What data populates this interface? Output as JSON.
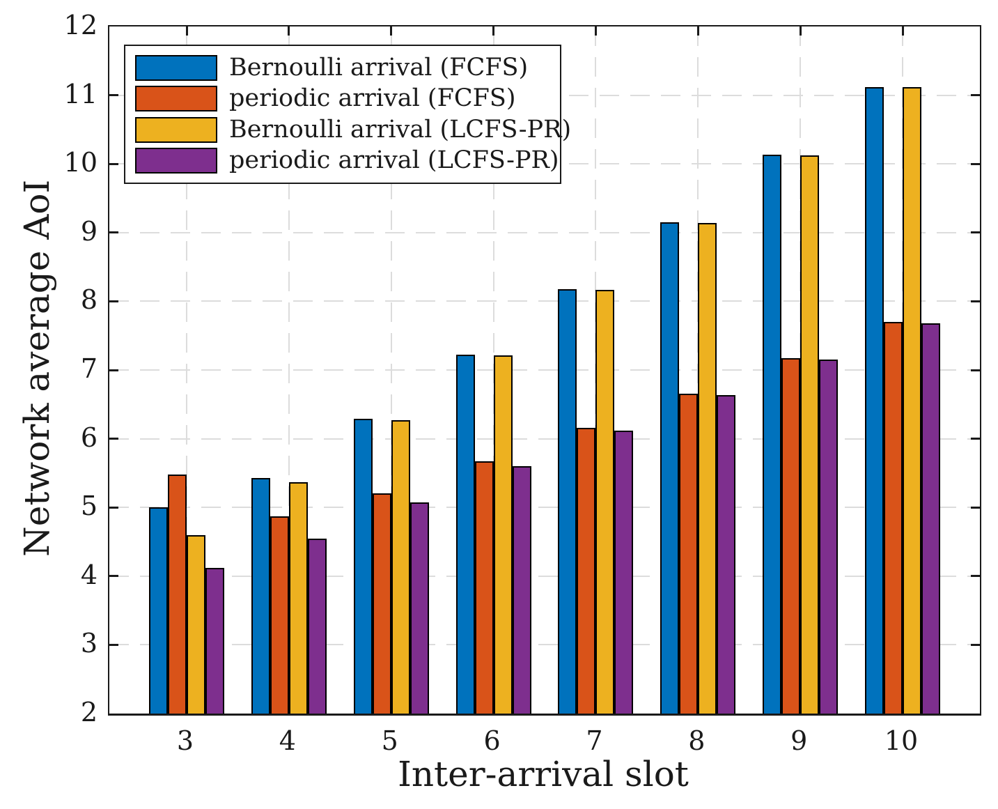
{
  "figure": {
    "background": "#ffffff"
  },
  "chart_data": {
    "type": "bar",
    "title": "",
    "xlabel": "Inter-arrival slot",
    "ylabel": "Network average AoI",
    "categories": [
      "3",
      "4",
      "5",
      "6",
      "7",
      "8",
      "9",
      "10"
    ],
    "yticks": [
      "2",
      "3",
      "4",
      "5",
      "6",
      "7",
      "8",
      "9",
      "10",
      "11",
      "12"
    ],
    "ylim": [
      2,
      12
    ],
    "grid": "dashed-both-axes",
    "legend_position": "top-left",
    "series": [
      {
        "name": "Bernoulli arrival (FCFS)",
        "color": "#0072BD",
        "values": [
          5.0,
          5.43,
          6.29,
          7.22,
          8.18,
          9.15,
          10.13,
          11.12
        ]
      },
      {
        "name": "periodic arrival (FCFS)",
        "color": "#D95319",
        "values": [
          5.48,
          4.87,
          5.2,
          5.67,
          6.16,
          6.66,
          7.17,
          7.7
        ]
      },
      {
        "name": "Bernoulli arrival (LCFS-PR)",
        "color": "#EDB120",
        "values": [
          4.6,
          5.37,
          6.27,
          7.21,
          8.17,
          9.14,
          10.12,
          11.12
        ]
      },
      {
        "name": "periodic arrival (LCFS-PR)",
        "color": "#7E2F8E",
        "values": [
          4.12,
          4.55,
          5.07,
          5.6,
          6.12,
          6.64,
          7.15,
          7.68
        ]
      }
    ],
    "colors": {
      "grid": "#dcdcdc",
      "axis": "#1a1a1a",
      "bar_edge": "#000000",
      "text": "#1a1a1a"
    }
  }
}
